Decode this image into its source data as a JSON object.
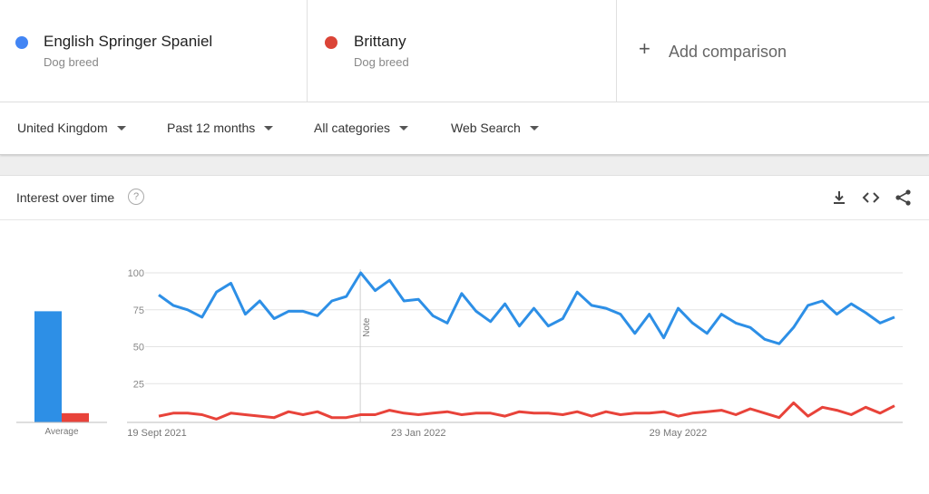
{
  "terms": [
    {
      "name": "English Springer Spaniel",
      "category": "Dog breed",
      "color": "#4285f4"
    },
    {
      "name": "Brittany",
      "category": "Dog breed",
      "color": "#db4437"
    }
  ],
  "add_comparison": {
    "label": "Add comparison",
    "icon": "plus-icon"
  },
  "filters": {
    "region": "United Kingdom",
    "period": "Past 12 months",
    "category": "All categories",
    "search_type": "Web Search"
  },
  "card": {
    "title": "Interest over time",
    "help_icon": "help-icon",
    "actions": [
      "download-icon",
      "embed-icon",
      "share-icon"
    ]
  },
  "chart_data": {
    "type": "line",
    "title": "Interest over time",
    "ylim": [
      0,
      100
    ],
    "yticks": [
      25,
      50,
      75,
      100
    ],
    "x_tick_labels": [
      "19 Sept 2021",
      "23 Jan 2022",
      "29 May 2022"
    ],
    "x_tick_indices": [
      0,
      18,
      36
    ],
    "annotation": {
      "label": "Note",
      "index": 14
    },
    "grid": true,
    "series": [
      {
        "name": "English Springer Spaniel",
        "color": "#2d8fe6",
        "values": [
          85,
          78,
          75,
          70,
          87,
          93,
          72,
          81,
          69,
          74,
          74,
          71,
          81,
          84,
          100,
          88,
          95,
          81,
          82,
          71,
          66,
          86,
          74,
          67,
          79,
          64,
          76,
          64,
          69,
          87,
          78,
          76,
          72,
          59,
          72,
          56,
          76,
          66,
          59,
          72,
          66,
          63,
          55,
          52,
          63,
          78,
          81,
          72,
          79,
          73,
          66,
          70
        ]
      },
      {
        "name": "Brittany",
        "color": "#e8433a",
        "values": [
          3,
          5,
          5,
          4,
          1,
          5,
          4,
          3,
          2,
          6,
          4,
          6,
          2,
          2,
          4,
          4,
          7,
          5,
          4,
          5,
          6,
          4,
          5,
          5,
          3,
          6,
          5,
          5,
          4,
          6,
          3,
          6,
          4,
          5,
          5,
          6,
          3,
          5,
          6,
          7,
          4,
          8,
          5,
          2,
          12,
          3,
          9,
          7,
          4,
          9,
          5,
          10
        ]
      }
    ],
    "average": {
      "label": "Average",
      "values": [
        74,
        5
      ]
    }
  }
}
